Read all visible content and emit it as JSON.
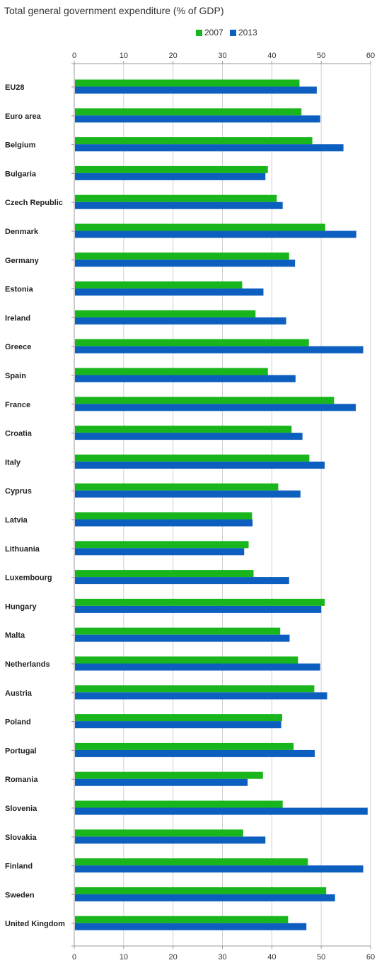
{
  "chart_data": {
    "type": "bar",
    "orientation": "horizontal",
    "title": "Total general government expenditure (% of GDP)",
    "xlabel": "",
    "ylabel": "",
    "xlim": [
      0,
      60
    ],
    "ticks": [
      0,
      10,
      20,
      30,
      40,
      50,
      60
    ],
    "tick_labels": [
      "0",
      "10",
      "20",
      "30",
      "40",
      "50",
      "60"
    ],
    "grid": true,
    "legend_position": "top",
    "categories": [
      "EU28",
      "Euro area",
      "Belgium",
      "Bulgaria",
      "Czech Republic",
      "Denmark",
      "Germany",
      "Estonia",
      "Ireland",
      "Greece",
      "Spain",
      "France",
      "Croatia",
      "Italy",
      "Cyprus",
      "Latvia",
      "Lithuania",
      "Luxembourg",
      "Hungary",
      "Malta",
      "Netherlands",
      "Austria",
      "Poland",
      "Portugal",
      "Romania",
      "Slovenia",
      "Slovakia",
      "Finland",
      "Sweden",
      "United Kingdom"
    ],
    "series": [
      {
        "name": "2007",
        "color": "#18b61c",
        "values": [
          45.6,
          46.0,
          48.2,
          39.2,
          41.0,
          50.8,
          43.5,
          34.0,
          36.7,
          47.5,
          39.2,
          52.6,
          44.0,
          47.6,
          41.3,
          36.0,
          35.3,
          36.3,
          50.7,
          41.7,
          45.3,
          48.6,
          42.1,
          44.4,
          38.2,
          42.2,
          34.2,
          47.3,
          51.0,
          43.3
        ]
      },
      {
        "name": "2013",
        "color": "#0d5fbf",
        "values": [
          49.1,
          49.8,
          54.5,
          38.7,
          42.2,
          57.1,
          44.7,
          38.3,
          42.9,
          58.5,
          44.8,
          57.0,
          46.2,
          50.7,
          45.8,
          36.1,
          34.4,
          43.5,
          50.0,
          43.6,
          49.8,
          51.2,
          41.9,
          48.7,
          35.1,
          59.4,
          38.7,
          58.5,
          52.8,
          47.0
        ]
      }
    ]
  }
}
